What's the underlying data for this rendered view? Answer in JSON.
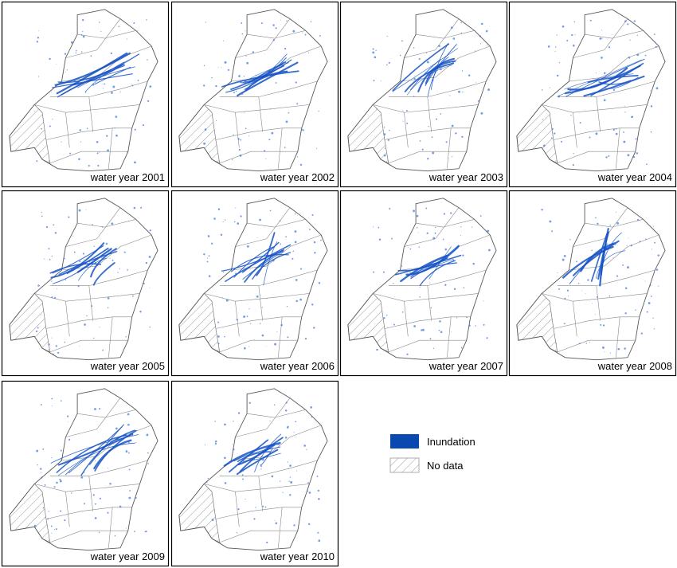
{
  "panels": [
    "water year 2001",
    "water year 2002",
    "water year 2003",
    "water year 2004",
    "water year 2005",
    "water year 2006",
    "water year 2007",
    "water year 2008",
    "water year 2009",
    "water year 2010"
  ],
  "legend": [
    "Inundation",
    "No data"
  ]
}
